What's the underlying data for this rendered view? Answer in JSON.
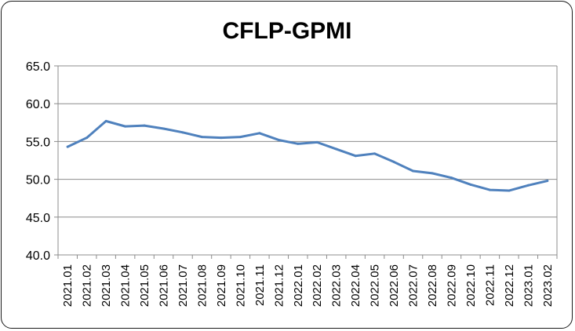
{
  "chart_data": {
    "type": "line",
    "title": "CFLP-GPMI",
    "xlabel": "",
    "ylabel": "",
    "ylim": [
      40.0,
      65.0
    ],
    "yticks": [
      "40.0",
      "45.0",
      "50.0",
      "55.0",
      "60.0",
      "65.0"
    ],
    "grid": true,
    "legend": "none",
    "line_color": "#4f81bd",
    "categories": [
      "2021.01",
      "2021.02",
      "2021.03",
      "2021.04",
      "2021.05",
      "2021.06",
      "2021.07",
      "2021.08",
      "2021.09",
      "2021.10",
      "2021.11",
      "2021.12",
      "2022.01",
      "2022.02",
      "2022.03",
      "2022.04",
      "2022.05",
      "2022.06",
      "2022.07",
      "2022.08",
      "2022.09",
      "2022.10",
      "2022.11",
      "2022.12",
      "2023.01",
      "2023.02"
    ],
    "values": [
      54.3,
      55.5,
      57.7,
      57.0,
      57.1,
      56.7,
      56.2,
      55.6,
      55.5,
      55.6,
      56.1,
      55.2,
      54.7,
      54.9,
      54.0,
      53.1,
      53.4,
      52.3,
      51.1,
      50.8,
      50.2,
      49.3,
      48.6,
      48.5,
      49.2,
      49.8
    ]
  }
}
